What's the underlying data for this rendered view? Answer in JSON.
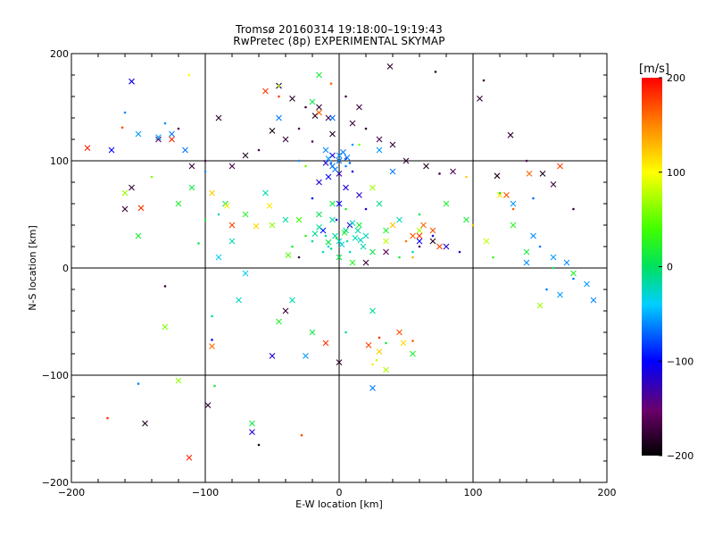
{
  "chart_data": {
    "type": "scatter",
    "title": "Tromsø 20160314 19:18:00–19:19:43",
    "subtitle": "RwPretec (8p) EXPERIMENTAL SKYMAP",
    "xlabel": "E-W location [km]",
    "ylabel": "N-S location [km]",
    "xlim": [
      -200,
      200
    ],
    "ylim": [
      -200,
      200
    ],
    "x_ticks": [
      "−200",
      "−100",
      "0",
      "100",
      "200"
    ],
    "y_ticks": [
      "−200",
      "−100",
      "0",
      "100",
      "200"
    ],
    "grid": true,
    "colorbar": {
      "label": "[m/s]",
      "range": [
        -200,
        200
      ],
      "ticks": [
        "200",
        "100",
        "0",
        "−100",
        "−200"
      ],
      "colormap": "black-purple-blue-cyan-green-yellow-red"
    },
    "markers": [
      "x",
      "dot"
    ],
    "series": [
      {
        "values": [
          [
            -45,
            170,
            -190
          ],
          [
            -35,
            158,
            -180
          ],
          [
            -25,
            150,
            -175
          ],
          [
            -18,
            142,
            -185
          ],
          [
            -8,
            140,
            -170
          ],
          [
            -30,
            130,
            -160
          ],
          [
            -50,
            128,
            -190
          ],
          [
            -40,
            120,
            -175
          ],
          [
            -20,
            118,
            -160
          ],
          [
            -5,
            125,
            -185
          ],
          [
            10,
            135,
            -170
          ],
          [
            20,
            130,
            -180
          ],
          [
            30,
            120,
            -165
          ],
          [
            40,
            115,
            -175
          ],
          [
            -60,
            110,
            -160
          ],
          [
            -70,
            105,
            -185
          ],
          [
            -80,
            95,
            -170
          ],
          [
            -100,
            100,
            -165
          ],
          [
            -110,
            95,
            -175
          ],
          [
            -90,
            140,
            -180
          ],
          [
            -120,
            130,
            -160
          ],
          [
            50,
            100,
            -175
          ],
          [
            65,
            95,
            -185
          ],
          [
            75,
            88,
            -170
          ],
          [
            85,
            90,
            -165
          ],
          [
            105,
            158,
            -180
          ],
          [
            108,
            175,
            -170
          ],
          [
            128,
            124,
            -175
          ],
          [
            118,
            86,
            -185
          ],
          [
            140,
            100,
            -165
          ],
          [
            152,
            88,
            -190
          ],
          [
            160,
            78,
            -170
          ],
          [
            175,
            55,
            -175
          ],
          [
            -135,
            120,
            -160
          ],
          [
            -155,
            75,
            -175
          ],
          [
            -130,
            -17,
            -170
          ],
          [
            -40,
            -40,
            -175
          ],
          [
            0,
            -88,
            -180
          ],
          [
            -60,
            -165,
            -190
          ],
          [
            -145,
            -145,
            -185
          ],
          [
            -98,
            -128,
            -180
          ],
          [
            -30,
            10,
            -170
          ],
          [
            20,
            5,
            -175
          ],
          [
            35,
            15,
            -160
          ],
          [
            60,
            20,
            -165
          ],
          [
            70,
            25,
            -185
          ],
          [
            -15,
            150,
            -175
          ],
          [
            5,
            160,
            -165
          ],
          [
            15,
            150,
            -170
          ],
          [
            38,
            188,
            -180
          ],
          [
            72,
            183,
            -175
          ],
          [
            -10,
            98,
            -120
          ],
          [
            -5,
            105,
            -110
          ],
          [
            5,
            102,
            -115
          ],
          [
            0,
            88,
            -125
          ],
          [
            -8,
            85,
            -100
          ],
          [
            10,
            90,
            -105
          ],
          [
            -15,
            80,
            -115
          ],
          [
            5,
            75,
            -110
          ],
          [
            -20,
            65,
            -95
          ],
          [
            15,
            68,
            -120
          ],
          [
            0,
            60,
            -100
          ],
          [
            -2,
            45,
            -110
          ],
          [
            8,
            40,
            -115
          ],
          [
            -12,
            35,
            -95
          ],
          [
            70,
            30,
            -110
          ],
          [
            60,
            25,
            -105
          ],
          [
            80,
            20,
            -115
          ],
          [
            90,
            15,
            -120
          ],
          [
            -155,
            174,
            -110
          ],
          [
            -170,
            110,
            -100
          ],
          [
            -95,
            -67,
            -105
          ],
          [
            -50,
            -82,
            -110
          ],
          [
            -65,
            -153,
            -115
          ],
          [
            20,
            55,
            -110
          ],
          [
            -5,
            140,
            -70
          ],
          [
            -10,
            110,
            -60
          ],
          [
            10,
            115,
            -55
          ],
          [
            0,
            100,
            -65
          ],
          [
            -5,
            95,
            -70
          ],
          [
            5,
            95,
            -60
          ],
          [
            3,
            108,
            -65
          ],
          [
            -8,
            102,
            -55
          ],
          [
            8,
            98,
            -70
          ],
          [
            -3,
            92,
            -62
          ],
          [
            0,
            105,
            -58
          ],
          [
            -6,
            98,
            -66
          ],
          [
            6,
            103,
            -64
          ],
          [
            -45,
            140,
            -65
          ],
          [
            -30,
            100,
            -60
          ],
          [
            30,
            110,
            -55
          ],
          [
            40,
            90,
            -65
          ],
          [
            -130,
            135,
            -60
          ],
          [
            -135,
            122,
            -55
          ],
          [
            -125,
            125,
            -65
          ],
          [
            -160,
            145,
            -60
          ],
          [
            -150,
            125,
            -55
          ],
          [
            -115,
            110,
            -65
          ],
          [
            -100,
            90,
            -60
          ],
          [
            130,
            60,
            -55
          ],
          [
            145,
            30,
            -60
          ],
          [
            150,
            20,
            -65
          ],
          [
            160,
            10,
            -55
          ],
          [
            170,
            5,
            -60
          ],
          [
            175,
            -10,
            -65
          ],
          [
            185,
            -15,
            -55
          ],
          [
            190,
            -30,
            -60
          ],
          [
            155,
            -20,
            -65
          ],
          [
            165,
            -25,
            -55
          ],
          [
            140,
            5,
            -60
          ],
          [
            -150,
            -108,
            -60
          ],
          [
            -25,
            -82,
            -55
          ],
          [
            25,
            -112,
            -65
          ],
          [
            -10,
            30,
            -20
          ],
          [
            0,
            25,
            -25
          ],
          [
            5,
            35,
            -15
          ],
          [
            -8,
            20,
            -30
          ],
          [
            12,
            28,
            -20
          ],
          [
            -15,
            38,
            -10
          ],
          [
            8,
            15,
            -25
          ],
          [
            -5,
            45,
            -15
          ],
          [
            18,
            20,
            -20
          ],
          [
            -20,
            25,
            -10
          ],
          [
            2,
            22,
            -30
          ],
          [
            14,
            35,
            -15
          ],
          [
            -12,
            15,
            -25
          ],
          [
            20,
            30,
            -20
          ],
          [
            -3,
            30,
            -18
          ],
          [
            6,
            25,
            -22
          ],
          [
            -18,
            32,
            -12
          ],
          [
            10,
            42,
            -28
          ],
          [
            -6,
            18,
            -16
          ],
          [
            16,
            26,
            -24
          ],
          [
            -80,
            25,
            -20
          ],
          [
            -90,
            50,
            -25
          ],
          [
            -40,
            45,
            -15
          ],
          [
            45,
            45,
            -20
          ],
          [
            55,
            15,
            -25
          ],
          [
            30,
            60,
            -10
          ],
          [
            -55,
            70,
            -20
          ],
          [
            -95,
            -45,
            -15
          ],
          [
            -75,
            -30,
            -25
          ],
          [
            -35,
            -30,
            -20
          ],
          [
            5,
            -60,
            -15
          ],
          [
            25,
            -40,
            -10
          ],
          [
            -5,
            60,
            10
          ],
          [
            5,
            55,
            20
          ],
          [
            -15,
            50,
            5
          ],
          [
            15,
            40,
            15
          ],
          [
            -25,
            30,
            25
          ],
          [
            25,
            15,
            10
          ],
          [
            35,
            35,
            20
          ],
          [
            -35,
            20,
            15
          ],
          [
            0,
            10,
            5
          ],
          [
            10,
            5,
            25
          ],
          [
            -2,
            28,
            12
          ],
          [
            4,
            33,
            18
          ],
          [
            -8,
            24,
            8
          ],
          [
            45,
            10,
            15
          ],
          [
            -110,
            75,
            10
          ],
          [
            -120,
            60,
            20
          ],
          [
            -100,
            45,
            15
          ],
          [
            -85,
            60,
            5
          ],
          [
            -70,
            50,
            25
          ],
          [
            60,
            50,
            10
          ],
          [
            80,
            60,
            20
          ],
          [
            95,
            45,
            15
          ],
          [
            120,
            70,
            5
          ],
          [
            130,
            40,
            25
          ],
          [
            140,
            15,
            15
          ],
          [
            160,
            0,
            10
          ],
          [
            175,
            -5,
            20
          ],
          [
            -150,
            30,
            15
          ],
          [
            -105,
            23,
            10
          ],
          [
            -45,
            -50,
            20
          ],
          [
            -20,
            -60,
            10
          ],
          [
            35,
            -70,
            15
          ],
          [
            55,
            -80,
            20
          ],
          [
            -65,
            -145,
            10
          ],
          [
            -93,
            -110,
            15
          ],
          [
            -20,
            155,
            10
          ],
          [
            -15,
            180,
            15
          ],
          [
            15,
            115,
            60
          ],
          [
            25,
            75,
            70
          ],
          [
            35,
            25,
            80
          ],
          [
            -25,
            95,
            55
          ],
          [
            -50,
            40,
            65
          ],
          [
            60,
            35,
            75
          ],
          [
            -140,
            85,
            60
          ],
          [
            -160,
            70,
            65
          ],
          [
            150,
            -35,
            70
          ],
          [
            28,
            -86,
            85
          ],
          [
            35,
            -95,
            75
          ],
          [
            -130,
            -55,
            60
          ],
          [
            -45,
            170,
            70
          ],
          [
            -120,
            -105,
            65
          ],
          [
            110,
            25,
            80
          ],
          [
            25,
            -90,
            110
          ],
          [
            30,
            -78,
            120
          ],
          [
            48,
            -70,
            115
          ],
          [
            -112,
            180,
            100
          ],
          [
            -95,
            70,
            120
          ],
          [
            -52,
            58,
            110
          ],
          [
            55,
            10,
            130
          ],
          [
            40,
            40,
            125
          ],
          [
            120,
            68,
            110
          ],
          [
            95,
            85,
            120
          ],
          [
            -62,
            39,
            115
          ],
          [
            -84,
            58,
            105
          ],
          [
            100,
            40,
            130
          ],
          [
            63,
            40,
            160
          ],
          [
            70,
            35,
            170
          ],
          [
            50,
            25,
            155
          ],
          [
            75,
            20,
            175
          ],
          [
            55,
            30,
            165
          ],
          [
            30,
            -65,
            180
          ],
          [
            45,
            -60,
            170
          ],
          [
            22,
            -72,
            175
          ],
          [
            55,
            -68,
            160
          ],
          [
            -125,
            120,
            185
          ],
          [
            -188,
            112,
            190
          ],
          [
            -162,
            131,
            170
          ],
          [
            -148,
            56,
            180
          ],
          [
            -112,
            -177,
            185
          ],
          [
            -45,
            160,
            175
          ],
          [
            -55,
            165,
            180
          ],
          [
            125,
            68,
            170
          ],
          [
            130,
            55,
            165
          ],
          [
            142,
            88,
            160
          ],
          [
            165,
            95,
            175
          ],
          [
            -28,
            -156,
            170
          ],
          [
            -10,
            -70,
            180
          ],
          [
            -15,
            145,
            165
          ],
          [
            -6,
            172,
            160
          ],
          [
            60,
            30,
            180
          ],
          [
            -160,
            55,
            -175
          ],
          [
            -173,
            -140,
            185
          ],
          [
            -95,
            -73,
            160
          ],
          [
            -80,
            40,
            175
          ],
          [
            145,
            65,
            -70
          ],
          [
            -38,
            12,
            45
          ],
          [
            -30,
            45,
            40
          ],
          [
            115,
            10,
            35
          ],
          [
            -90,
            10,
            -40
          ],
          [
            -70,
            -5,
            -35
          ]
        ]
      }
    ]
  }
}
